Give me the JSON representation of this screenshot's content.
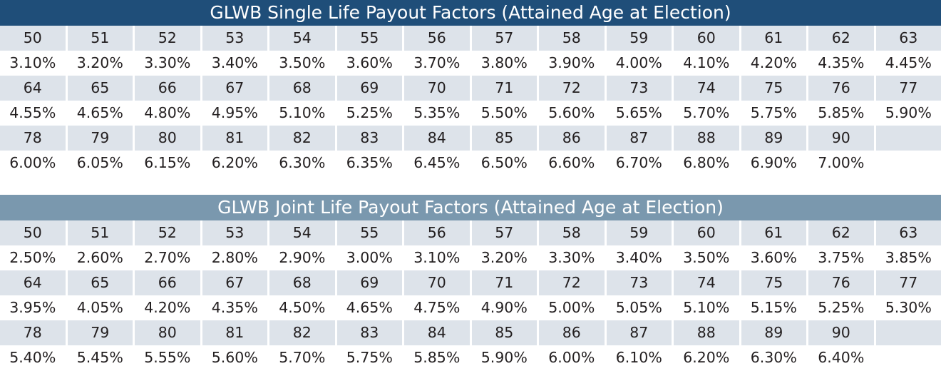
{
  "single": {
    "title": "GLWB Single Life Payout Factors (Attained Age at Election)",
    "rows": [
      {
        "ages": [
          "50",
          "51",
          "52",
          "53",
          "54",
          "55",
          "56",
          "57",
          "58",
          "59",
          "60",
          "61",
          "62",
          "63"
        ],
        "factors": [
          "3.10%",
          "3.20%",
          "3.30%",
          "3.40%",
          "3.50%",
          "3.60%",
          "3.70%",
          "3.80%",
          "3.90%",
          "4.00%",
          "4.10%",
          "4.20%",
          "4.35%",
          "4.45%"
        ]
      },
      {
        "ages": [
          "64",
          "65",
          "66",
          "67",
          "68",
          "69",
          "70",
          "71",
          "72",
          "73",
          "74",
          "75",
          "76",
          "77"
        ],
        "factors": [
          "4.55%",
          "4.65%",
          "4.80%",
          "4.95%",
          "5.10%",
          "5.25%",
          "5.35%",
          "5.50%",
          "5.60%",
          "5.65%",
          "5.70%",
          "5.75%",
          "5.85%",
          "5.90%"
        ]
      },
      {
        "ages": [
          "78",
          "79",
          "80",
          "81",
          "82",
          "83",
          "84",
          "85",
          "86",
          "87",
          "88",
          "89",
          "90",
          ""
        ],
        "factors": [
          "6.00%",
          "6.05%",
          "6.15%",
          "6.20%",
          "6.30%",
          "6.35%",
          "6.45%",
          "6.50%",
          "6.60%",
          "6.70%",
          "6.80%",
          "6.90%",
          "7.00%",
          ""
        ]
      }
    ]
  },
  "joint": {
    "title": "GLWB Joint Life Payout Factors (Attained Age at Election)",
    "rows": [
      {
        "ages": [
          "50",
          "51",
          "52",
          "53",
          "54",
          "55",
          "56",
          "57",
          "58",
          "59",
          "60",
          "61",
          "62",
          "63"
        ],
        "factors": [
          "2.50%",
          "2.60%",
          "2.70%",
          "2.80%",
          "2.90%",
          "3.00%",
          "3.10%",
          "3.20%",
          "3.30%",
          "3.40%",
          "3.50%",
          "3.60%",
          "3.75%",
          "3.85%"
        ]
      },
      {
        "ages": [
          "64",
          "65",
          "66",
          "67",
          "68",
          "69",
          "70",
          "71",
          "72",
          "73",
          "74",
          "75",
          "76",
          "77"
        ],
        "factors": [
          "3.95%",
          "4.05%",
          "4.20%",
          "4.35%",
          "4.50%",
          "4.65%",
          "4.75%",
          "4.90%",
          "5.00%",
          "5.05%",
          "5.10%",
          "5.15%",
          "5.25%",
          "5.30%"
        ]
      },
      {
        "ages": [
          "78",
          "79",
          "80",
          "81",
          "82",
          "83",
          "84",
          "85",
          "86",
          "87",
          "88",
          "89",
          "90",
          ""
        ],
        "factors": [
          "5.40%",
          "5.45%",
          "5.55%",
          "5.60%",
          "5.70%",
          "5.75%",
          "5.85%",
          "5.90%",
          "6.00%",
          "6.10%",
          "6.20%",
          "6.30%",
          "6.40%",
          ""
        ]
      }
    ]
  },
  "colors": {
    "single_header_bg": "#1f4e79",
    "joint_header_bg": "#7a98ae",
    "age_row_bg": "#dde3ea",
    "factor_row_bg": "#ffffff",
    "text": "#231f20"
  }
}
